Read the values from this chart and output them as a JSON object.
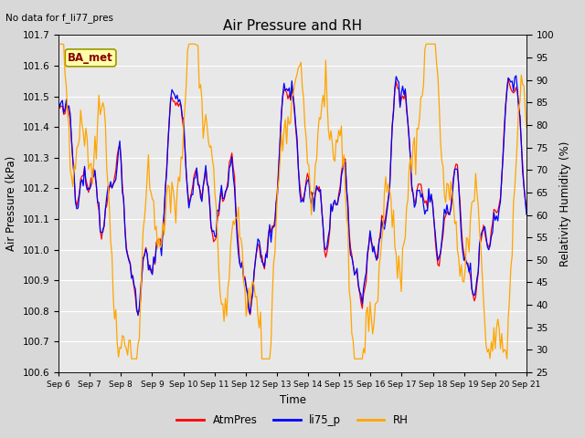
{
  "title": "Air Pressure and RH",
  "no_data_text": "No data for f_li77_pres",
  "station_label": "BA_met",
  "xlabel": "Time",
  "ylabel_left": "Air Pressure (kPa)",
  "ylabel_right": "Relativity Humidity (%)",
  "ylim_left": [
    100.6,
    101.7
  ],
  "ylim_right": [
    25,
    100
  ],
  "yticks_left": [
    100.6,
    100.7,
    100.8,
    100.9,
    101.0,
    101.1,
    101.2,
    101.3,
    101.4,
    101.5,
    101.6,
    101.7
  ],
  "yticks_right": [
    25,
    30,
    35,
    40,
    45,
    50,
    55,
    60,
    65,
    70,
    75,
    80,
    85,
    90,
    95,
    100
  ],
  "xtick_labels": [
    "Sep 6",
    "Sep 7",
    "Sep 8",
    "Sep 9",
    "Sep 10",
    "Sep 11",
    "Sep 12",
    "Sep 13",
    "Sep 14",
    "Sep 15",
    "Sep 16",
    "Sep 17",
    "Sep 18",
    "Sep 19",
    "Sep 20",
    "Sep 21"
  ],
  "color_atmpres": "#FF0000",
  "color_li75p": "#0000FF",
  "color_rh": "#FFA500",
  "legend_labels": [
    "AtmPres",
    "li75_p",
    "RH"
  ],
  "fig_bg": "#D8D8D8",
  "plot_bg": "#E8E8E8",
  "grid_color": "#FFFFFF",
  "station_box_facecolor": "#FFFFAA",
  "station_box_edgecolor": "#999900",
  "station_label_color": "#880000"
}
